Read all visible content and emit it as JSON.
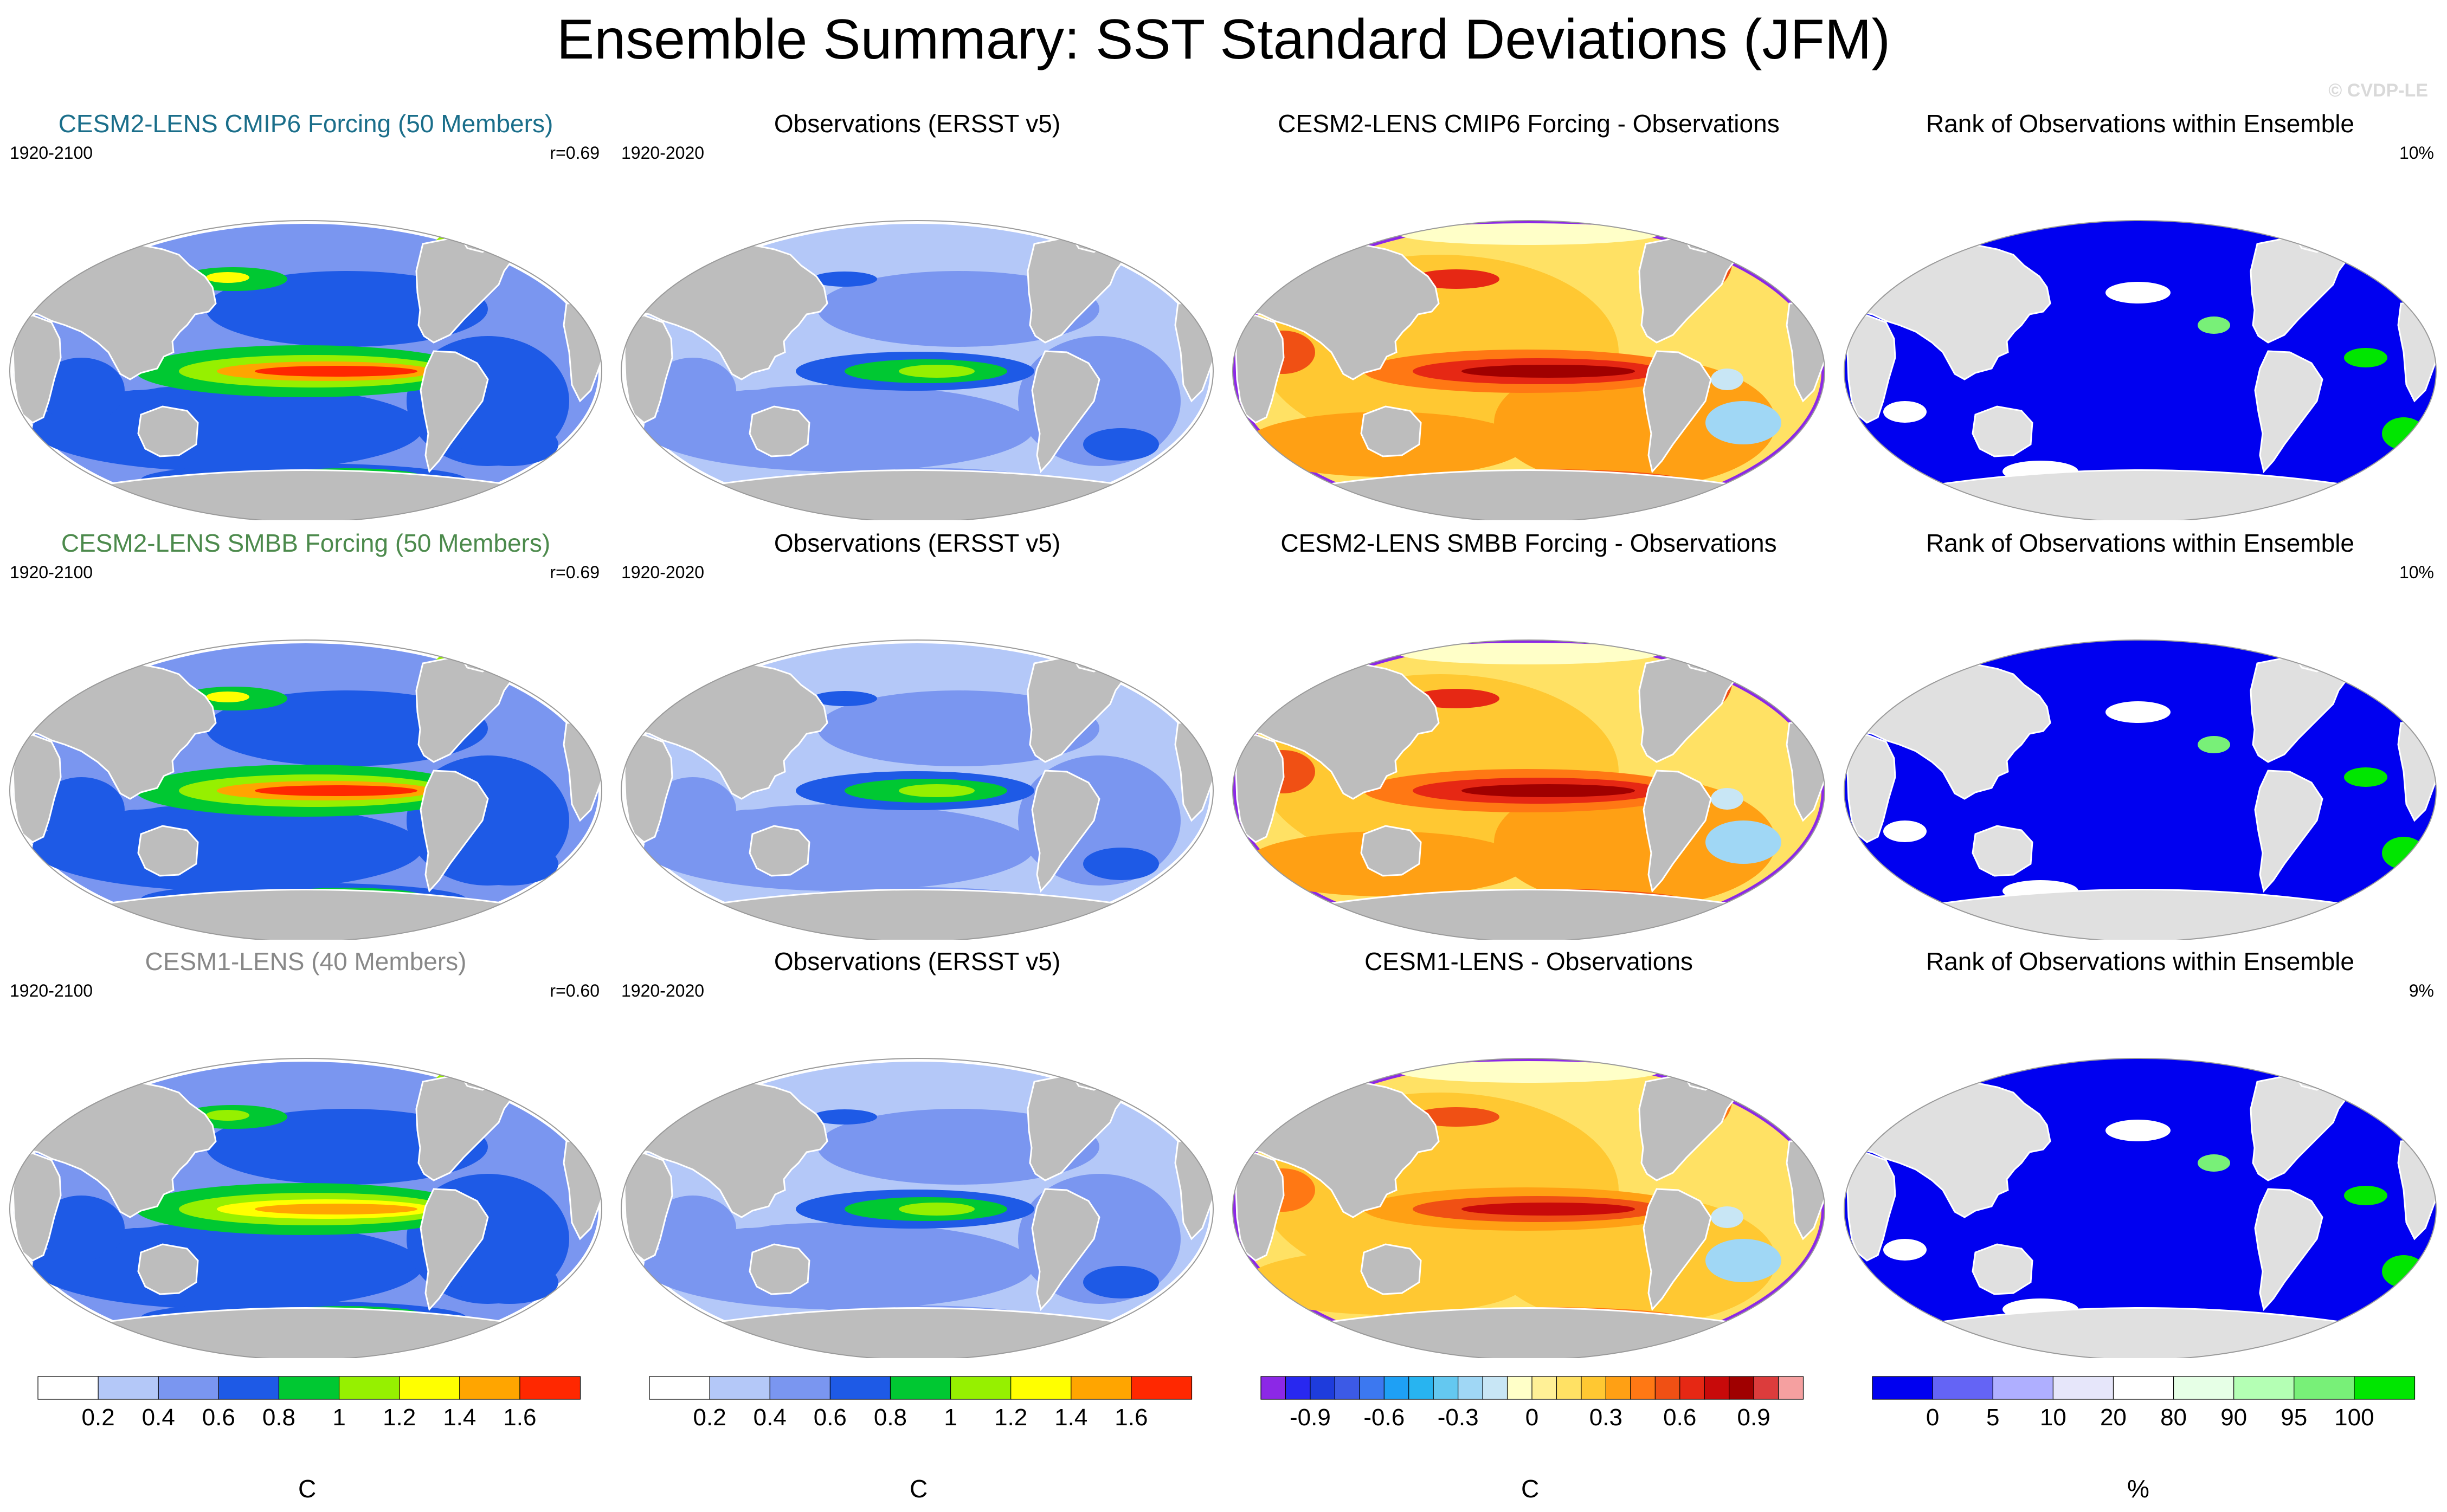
{
  "title": "Ensemble Summary: SST Standard Deviations (JFM)",
  "credit": "© CVDP-LE",
  "colors": {
    "land": "#bdbdbd",
    "title_cmip6": "#1a6e8a",
    "title_smbb": "#4c8a4c",
    "title_lens1": "#888888"
  },
  "rows": [
    {
      "panels": [
        {
          "kind": "sd",
          "title": "CESM2-LENS CMIP6 Forcing (50 Members)",
          "title_color_key": "title_cmip6",
          "left": "1920-2100",
          "right": "r=0.69",
          "intensity": 1.0
        },
        {
          "kind": "obs",
          "title": "Observations (ERSST v5)",
          "left": "1920-2020",
          "right": "",
          "intensity": 0.55
        },
        {
          "kind": "diff",
          "title": "CESM2-LENS CMIP6 Forcing - Observations",
          "left": "",
          "right": "",
          "intensity": 1.0
        },
        {
          "kind": "rank",
          "title": "Rank of Observations within Ensemble",
          "left": "",
          "right": "10%",
          "intensity": 1.0
        }
      ]
    },
    {
      "panels": [
        {
          "kind": "sd",
          "title": "CESM2-LENS SMBB Forcing (50 Members)",
          "title_color_key": "title_smbb",
          "left": "1920-2100",
          "right": "r=0.69",
          "intensity": 1.05
        },
        {
          "kind": "obs",
          "title": "Observations (ERSST v5)",
          "left": "1920-2020",
          "right": "",
          "intensity": 0.55
        },
        {
          "kind": "diff",
          "title": "CESM2-LENS SMBB Forcing - Observations",
          "left": "",
          "right": "",
          "intensity": 1.05
        },
        {
          "kind": "rank",
          "title": "Rank of Observations within Ensemble",
          "left": "",
          "right": "10%",
          "intensity": 1.0
        }
      ]
    },
    {
      "panels": [
        {
          "kind": "sd",
          "title": "CESM1-LENS (40 Members)",
          "title_color_key": "title_lens1",
          "left": "1920-2100",
          "right": "r=0.60",
          "intensity": 0.9
        },
        {
          "kind": "obs",
          "title": "Observations (ERSST v5)",
          "left": "1920-2020",
          "right": "",
          "intensity": 0.55
        },
        {
          "kind": "diff",
          "title": "CESM1-LENS - Observations",
          "left": "",
          "right": "",
          "intensity": 0.85
        },
        {
          "kind": "rank",
          "title": "Rank of Observations within Ensemble",
          "left": "",
          "right": "9%",
          "intensity": 0.9
        }
      ]
    }
  ],
  "chart_data": [
    {
      "type": "heatmap",
      "name": "Ensemble mean SST standard deviation (JFM)",
      "projection": "Robinson-like global map",
      "unit": "C",
      "levels": [
        0.2,
        0.4,
        0.6,
        0.8,
        1,
        1.2,
        1.4,
        1.6
      ],
      "colors": [
        "#ffffff",
        "#b4c8f8",
        "#7a96f0",
        "#1e5ae6",
        "#00c832",
        "#96f000",
        "#ffff00",
        "#ffa500",
        "#ff2800"
      ],
      "tick_labels": [
        "0.2",
        "0.4",
        "0.6",
        "0.8",
        "1",
        "1.2",
        "1.4",
        "1.6"
      ],
      "panels": [
        "CESM2-LENS CMIP6 Forcing (50 Members)",
        "CESM2-LENS SMBB Forcing (50 Members)",
        "CESM1-LENS (40 Members)"
      ],
      "pattern_correlation": [
        0.69,
        0.69,
        0.6
      ]
    },
    {
      "type": "heatmap",
      "name": "Observed SST standard deviation (JFM)",
      "unit": "C",
      "levels": [
        0.2,
        0.4,
        0.6,
        0.8,
        1,
        1.2,
        1.4,
        1.6
      ],
      "colors": [
        "#ffffff",
        "#b4c8f8",
        "#7a96f0",
        "#1e5ae6",
        "#00c832",
        "#96f000",
        "#ffff00",
        "#ffa500",
        "#ff2800"
      ],
      "tick_labels": [
        "0.2",
        "0.4",
        "0.6",
        "0.8",
        "1",
        "1.2",
        "1.4",
        "1.6"
      ],
      "panels": [
        "Observations (ERSST v5)",
        "Observations (ERSST v5)",
        "Observations (ERSST v5)"
      ],
      "period": "1920-2020"
    },
    {
      "type": "heatmap",
      "name": "Ensemble minus observations",
      "unit": "C",
      "levels": [
        -1.0,
        -0.9,
        -0.8,
        -0.7,
        -0.6,
        -0.5,
        -0.4,
        -0.3,
        -0.2,
        -0.1,
        0,
        0.1,
        0.2,
        0.3,
        0.4,
        0.5,
        0.6,
        0.7,
        0.8,
        0.9,
        1.0
      ],
      "colors": [
        "#8c28e6",
        "#2828f0",
        "#1e3cdc",
        "#3c5ae6",
        "#3c78f0",
        "#1ea0f5",
        "#28b4f0",
        "#64c8f0",
        "#a0d7f5",
        "#c8e6f5",
        "#ffffc8",
        "#fff096",
        "#ffe164",
        "#ffc832",
        "#ffa014",
        "#ff7814",
        "#f05014",
        "#e62814",
        "#c80a0a",
        "#a00000",
        "#dc3c3c",
        "#f5a0a0"
      ],
      "tick_labels": [
        "-0.9",
        "-0.6",
        "-0.3",
        "0",
        "0.3",
        "0.6",
        "0.9"
      ],
      "panels": [
        "CESM2-LENS CMIP6 Forcing - Observations",
        "CESM2-LENS SMBB Forcing - Observations",
        "CESM1-LENS - Observations"
      ]
    },
    {
      "type": "heatmap",
      "name": "Rank of observations within ensemble",
      "unit": "%",
      "levels": [
        0,
        5,
        10,
        20,
        80,
        90,
        95,
        100
      ],
      "colors": [
        "#0000f0",
        "#6464f5",
        "#afafff",
        "#e6e6fa",
        "#ffffff",
        "#e6ffe6",
        "#b4ffb4",
        "#78f078",
        "#00e600"
      ],
      "tick_labels": [
        "0",
        "5",
        "10",
        "20",
        "80",
        "90",
        "95",
        "100"
      ],
      "panels": [
        "Rank of Observations within Ensemble",
        "Rank of Observations within Ensemble",
        "Rank of Observations within Ensemble"
      ],
      "percent_outside_ensemble": [
        10,
        10,
        9
      ]
    }
  ],
  "labelbars": [
    {
      "kind": "sd",
      "unit": "C"
    },
    {
      "kind": "sd",
      "unit": "C"
    },
    {
      "kind": "diff",
      "unit": "C"
    },
    {
      "kind": "rank",
      "unit": "%"
    }
  ]
}
